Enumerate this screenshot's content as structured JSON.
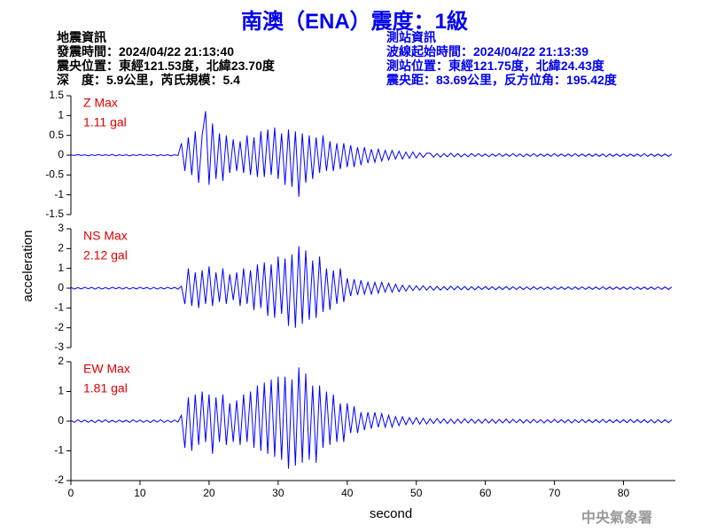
{
  "header": {
    "title": "南澳（ENA）震度：1級",
    "event_info": [
      "地震資訊",
      "發震時間：2024/04/22 21:13:40",
      "震央位置：東經121.53度，北緯23.70度",
      "深　度：5.9公里，芮氏規模：5.4"
    ],
    "station_info": [
      "測站資訊",
      "波線起始時間：2024/04/22 21:13:39",
      "測站位置：東經121.75度，北緯24.43度",
      "震央距：83.69公里，反方位角：195.42度"
    ],
    "footer": "中央氣象署"
  },
  "chart_data": [
    {
      "type": "line",
      "color": "#0000ff",
      "annotations": [
        "Z Max",
        "1.11 gal"
      ],
      "xlim": [
        0,
        87.5
      ],
      "ylim": [
        -1.5,
        1.5
      ],
      "yticks": [
        -1.5,
        -1,
        -0.5,
        0,
        0.5,
        1,
        1.5
      ],
      "x": [
        0,
        0.5,
        1,
        1.5,
        2,
        2.5,
        3,
        3.5,
        4,
        4.5,
        5,
        5.5,
        6,
        6.5,
        7,
        7.5,
        8,
        8.5,
        9,
        9.5,
        10,
        10.5,
        11,
        11.5,
        12,
        12.5,
        13,
        13.5,
        14,
        14.5,
        15,
        15.5,
        16,
        16.5,
        17,
        17.5,
        18,
        18.5,
        19,
        19.5,
        20,
        20.5,
        21,
        21.5,
        22,
        22.5,
        23,
        23.5,
        24,
        24.5,
        25,
        25.5,
        26,
        26.5,
        27,
        27.5,
        28,
        28.5,
        29,
        29.5,
        30,
        30.5,
        31,
        31.5,
        32,
        32.5,
        33,
        33.5,
        34,
        34.5,
        35,
        35.5,
        36,
        36.5,
        37,
        37.5,
        38,
        38.5,
        39,
        39.5,
        40,
        40.5,
        41,
        41.5,
        42,
        42.5,
        43,
        43.5,
        44,
        44.5,
        45,
        45.5,
        46,
        46.5,
        47,
        47.5,
        48,
        48.5,
        49,
        49.5,
        50,
        50.5,
        51,
        51.5,
        52,
        52.5,
        53,
        53.5,
        54,
        54.5,
        55,
        55.5,
        56,
        56.5,
        57,
        57.5,
        58,
        58.5,
        59,
        59.5,
        60,
        60.5,
        61,
        61.5,
        62,
        62.5,
        63,
        63.5,
        64,
        64.5,
        65,
        65.5,
        66,
        66.5,
        67,
        67.5,
        68,
        68.5,
        69,
        69.5,
        70,
        70.5,
        71,
        71.5,
        72,
        72.5,
        73,
        73.5,
        74,
        74.5,
        75,
        75.5,
        76,
        76.5,
        77,
        77.5,
        78,
        78.5,
        79,
        79.5,
        80,
        80.5,
        81,
        81.5,
        82,
        82.5,
        83,
        83.5,
        84,
        84.5,
        85,
        85.5,
        86,
        86.5,
        87
      ],
      "values": [
        0.01,
        -0.01,
        0.02,
        -0.01,
        0.01,
        -0.02,
        0.01,
        -0.01,
        0.02,
        -0.01,
        0.01,
        -0.01,
        0.02,
        -0.02,
        0.01,
        -0.01,
        0.01,
        -0.02,
        0.01,
        -0.01,
        0.02,
        -0.01,
        0.01,
        -0.01,
        0.02,
        -0.02,
        0.01,
        -0.01,
        0.01,
        -0.02,
        0.01,
        -0.01,
        0.3,
        -0.4,
        0.45,
        -0.5,
        0.6,
        -0.7,
        0.5,
        1.11,
        -0.75,
        0.8,
        -0.6,
        0.55,
        -0.65,
        0.5,
        -0.45,
        0.4,
        -0.4,
        0.35,
        -0.45,
        0.5,
        -0.5,
        0.45,
        -0.55,
        0.6,
        -0.55,
        0.65,
        -0.5,
        0.7,
        -0.6,
        0.55,
        -0.75,
        0.65,
        -0.8,
        0.6,
        -1.05,
        0.55,
        -0.7,
        0.5,
        -0.6,
        0.45,
        -0.45,
        0.5,
        -0.4,
        0.35,
        -0.4,
        0.3,
        -0.35,
        0.3,
        -0.3,
        0.25,
        -0.3,
        0.2,
        -0.25,
        0.2,
        -0.2,
        0.15,
        -0.18,
        0.15,
        -0.15,
        0.12,
        -0.12,
        0.12,
        -0.1,
        0.1,
        -0.1,
        0.08,
        -0.08,
        0.08,
        -0.07,
        0.06,
        -0.06,
        0.05,
        0.05,
        -0.05,
        0.04,
        -0.05,
        0.04,
        -0.04,
        0.05,
        -0.04,
        0.04,
        -0.04,
        0.03,
        -0.04,
        0.04,
        -0.03,
        0.04,
        -0.03,
        0.03,
        -0.04,
        0.03,
        -0.03,
        0.04,
        -0.03,
        0.03,
        -0.03,
        0.04,
        -0.03,
        0.03,
        -0.04,
        0.03,
        -0.03,
        0.04,
        -0.03,
        0.03,
        -0.03,
        0.03,
        -0.03,
        0.04,
        -0.03,
        0.03,
        -0.03,
        0.03,
        -0.03,
        0.04,
        -0.03,
        0.03,
        -0.03,
        0.03,
        -0.03,
        0.03,
        -0.03,
        0.03,
        -0.04,
        0.03,
        -0.03,
        0.03,
        -0.03,
        0.03,
        -0.03,
        0.03,
        -0.03,
        0.03,
        -0.03,
        0.04,
        -0.03,
        0.03,
        -0.03,
        0.03,
        -0.03,
        0.03,
        -0.03,
        0.03
      ]
    },
    {
      "type": "line",
      "color": "#0000ff",
      "annotations": [
        "NS Max",
        "2.12 gal"
      ],
      "ylabel": "acceleration",
      "xlim": [
        0,
        87.5
      ],
      "ylim": [
        -3,
        3
      ],
      "yticks": [
        -3,
        -2,
        -1,
        0,
        1,
        2,
        3
      ],
      "x": [
        0,
        0.5,
        1,
        1.5,
        2,
        2.5,
        3,
        3.5,
        4,
        4.5,
        5,
        5.5,
        6,
        6.5,
        7,
        7.5,
        8,
        8.5,
        9,
        9.5,
        10,
        10.5,
        11,
        11.5,
        12,
        12.5,
        13,
        13.5,
        14,
        14.5,
        15,
        15.5,
        16,
        16.5,
        17,
        17.5,
        18,
        18.5,
        19,
        19.5,
        20,
        20.5,
        21,
        21.5,
        22,
        22.5,
        23,
        23.5,
        24,
        24.5,
        25,
        25.5,
        26,
        26.5,
        27,
        27.5,
        28,
        28.5,
        29,
        29.5,
        30,
        30.5,
        31,
        31.5,
        32,
        32.5,
        33,
        33.5,
        34,
        34.5,
        35,
        35.5,
        36,
        36.5,
        37,
        37.5,
        38,
        38.5,
        39,
        39.5,
        40,
        40.5,
        41,
        41.5,
        42,
        42.5,
        43,
        43.5,
        44,
        44.5,
        45,
        45.5,
        46,
        46.5,
        47,
        47.5,
        48,
        48.5,
        49,
        49.5,
        50,
        50.5,
        51,
        51.5,
        52,
        52.5,
        53,
        53.5,
        54,
        54.5,
        55,
        55.5,
        56,
        56.5,
        57,
        57.5,
        58,
        58.5,
        59,
        59.5,
        60,
        60.5,
        61,
        61.5,
        62,
        62.5,
        63,
        63.5,
        64,
        64.5,
        65,
        65.5,
        66,
        66.5,
        67,
        67.5,
        68,
        68.5,
        69,
        69.5,
        70,
        70.5,
        71,
        71.5,
        72,
        72.5,
        73,
        73.5,
        74,
        74.5,
        75,
        75.5,
        76,
        76.5,
        77,
        77.5,
        78,
        78.5,
        79,
        79.5,
        80,
        80.5,
        81,
        81.5,
        82,
        82.5,
        83,
        83.5,
        84,
        84.5,
        85,
        85.5,
        86,
        86.5,
        87
      ],
      "values": [
        0.04,
        -0.05,
        0.03,
        -0.04,
        0.05,
        -0.03,
        0.04,
        -0.05,
        0.04,
        -0.05,
        0.03,
        -0.04,
        0.05,
        -0.03,
        0.04,
        -0.05,
        0.04,
        -0.05,
        0.03,
        -0.04,
        0.05,
        -0.03,
        0.04,
        -0.05,
        0.04,
        -0.05,
        0.03,
        -0.04,
        0.05,
        -0.03,
        0.04,
        -0.05,
        0.1,
        -0.8,
        1.0,
        -0.9,
        0.8,
        -1.0,
        0.9,
        -0.8,
        1.1,
        -0.9,
        0.8,
        -0.7,
        1.0,
        -0.8,
        0.7,
        -0.6,
        0.8,
        -0.9,
        1.0,
        -0.8,
        0.9,
        -1.1,
        1.2,
        -1.0,
        1.3,
        -1.4,
        1.2,
        -1.5,
        1.6,
        -1.3,
        1.5,
        -1.9,
        1.7,
        -2.0,
        2.12,
        -1.8,
        1.9,
        -1.6,
        1.4,
        -1.5,
        1.6,
        -1.2,
        1.0,
        -1.1,
        0.9,
        -0.8,
        1.0,
        -0.7,
        0.5,
        -0.4,
        0.45,
        -0.35,
        0.4,
        -0.3,
        0.3,
        -0.3,
        0.3,
        -0.25,
        0.3,
        -0.2,
        0.25,
        -0.2,
        0.2,
        -0.18,
        0.15,
        -0.15,
        0.14,
        -0.12,
        0.12,
        -0.1,
        0.12,
        -0.1,
        0.1,
        -0.1,
        0.09,
        -0.1,
        0.08,
        -0.09,
        0.1,
        -0.08,
        0.09,
        -0.08,
        0.08,
        -0.09,
        0.07,
        -0.08,
        0.08,
        -0.07,
        0.08,
        -0.07,
        0.07,
        -0.08,
        0.07,
        -0.07,
        0.08,
        -0.07,
        0.07,
        -0.06,
        0.07,
        -0.07,
        0.06,
        -0.07,
        0.07,
        -0.06,
        0.06,
        -0.07,
        0.06,
        -0.06,
        0.07,
        -0.06,
        0.06,
        -0.06,
        0.06,
        -0.07,
        0.06,
        -0.06,
        0.07,
        -0.06,
        0.06,
        -0.06,
        0.06,
        -0.06,
        0.07,
        -0.06,
        0.06,
        -0.06,
        0.06,
        -0.06,
        0.06,
        -0.06,
        0.06,
        -0.07,
        0.06,
        -0.06,
        0.06,
        -0.06,
        0.06,
        -0.06,
        0.07,
        -0.06,
        0.06,
        -0.06,
        0.06
      ]
    },
    {
      "type": "line",
      "color": "#0000ff",
      "annotations": [
        "EW Max",
        "1.81 gal"
      ],
      "xlabel": "second",
      "xlim": [
        0,
        87.5
      ],
      "ylim": [
        -2,
        2
      ],
      "yticks": [
        -2,
        -1,
        0,
        1,
        2
      ],
      "xticks": [
        0,
        10,
        20,
        30,
        40,
        50,
        60,
        70,
        80
      ],
      "x": [
        0,
        0.5,
        1,
        1.5,
        2,
        2.5,
        3,
        3.5,
        4,
        4.5,
        5,
        5.5,
        6,
        6.5,
        7,
        7.5,
        8,
        8.5,
        9,
        9.5,
        10,
        10.5,
        11,
        11.5,
        12,
        12.5,
        13,
        13.5,
        14,
        14.5,
        15,
        15.5,
        16,
        16.5,
        17,
        17.5,
        18,
        18.5,
        19,
        19.5,
        20,
        20.5,
        21,
        21.5,
        22,
        22.5,
        23,
        23.5,
        24,
        24.5,
        25,
        25.5,
        26,
        26.5,
        27,
        27.5,
        28,
        28.5,
        29,
        29.5,
        30,
        30.5,
        31,
        31.5,
        32,
        32.5,
        33,
        33.5,
        34,
        34.5,
        35,
        35.5,
        36,
        36.5,
        37,
        37.5,
        38,
        38.5,
        39,
        39.5,
        40,
        40.5,
        41,
        41.5,
        42,
        42.5,
        43,
        43.5,
        44,
        44.5,
        45,
        45.5,
        46,
        46.5,
        47,
        47.5,
        48,
        48.5,
        49,
        49.5,
        50,
        50.5,
        51,
        51.5,
        52,
        52.5,
        53,
        53.5,
        54,
        54.5,
        55,
        55.5,
        56,
        56.5,
        57,
        57.5,
        58,
        58.5,
        59,
        59.5,
        60,
        60.5,
        61,
        61.5,
        62,
        62.5,
        63,
        63.5,
        64,
        64.5,
        65,
        65.5,
        66,
        66.5,
        67,
        67.5,
        68,
        68.5,
        69,
        69.5,
        70,
        70.5,
        71,
        71.5,
        72,
        72.5,
        73,
        73.5,
        74,
        74.5,
        75,
        75.5,
        76,
        76.5,
        77,
        77.5,
        78,
        78.5,
        79,
        79.5,
        80,
        80.5,
        81,
        81.5,
        82,
        82.5,
        83,
        83.5,
        84,
        84.5,
        85,
        85.5,
        86,
        86.5,
        87
      ],
      "values": [
        0.03,
        -0.04,
        0.05,
        -0.03,
        0.04,
        -0.04,
        0.03,
        -0.05,
        0.04,
        -0.03,
        0.05,
        -0.04,
        0.03,
        -0.04,
        0.04,
        -0.03,
        0.03,
        -0.04,
        0.05,
        -0.03,
        0.04,
        -0.04,
        0.03,
        -0.05,
        0.04,
        -0.03,
        0.05,
        -0.04,
        0.03,
        -0.04,
        0.04,
        -0.03,
        0.2,
        -0.9,
        0.8,
        -1.0,
        0.9,
        -0.8,
        1.0,
        -0.7,
        0.9,
        -1.1,
        0.8,
        -0.7,
        0.9,
        -0.8,
        0.6,
        -0.7,
        0.7,
        -0.8,
        0.9,
        -0.7,
        1.0,
        -0.9,
        1.2,
        -1.0,
        1.3,
        -1.1,
        1.4,
        -1.2,
        1.5,
        -1.3,
        1.5,
        -1.6,
        1.4,
        -1.5,
        1.81,
        -1.4,
        1.6,
        -1.3,
        1.2,
        -1.4,
        1.2,
        -0.9,
        1.0,
        -0.8,
        0.9,
        -0.7,
        0.6,
        -0.7,
        0.6,
        -0.4,
        0.5,
        -0.4,
        0.3,
        -0.3,
        0.3,
        -0.25,
        0.3,
        -0.2,
        0.25,
        -0.2,
        0.2,
        -0.2,
        0.15,
        -0.15,
        0.15,
        -0.12,
        0.12,
        -0.1,
        0.12,
        -0.1,
        0.1,
        -0.1,
        0.08,
        -0.08,
        0.09,
        -0.07,
        0.08,
        -0.08,
        0.07,
        -0.08,
        0.07,
        -0.07,
        0.08,
        -0.06,
        0.07,
        -0.07,
        0.06,
        -0.07,
        0.07,
        -0.06,
        0.06,
        -0.07,
        0.06,
        -0.06,
        0.07,
        -0.06,
        0.06,
        -0.05,
        0.06,
        -0.06,
        0.05,
        -0.06,
        0.06,
        -0.05,
        0.05,
        -0.06,
        0.05,
        -0.05,
        0.06,
        -0.05,
        0.05,
        -0.05,
        0.05,
        -0.06,
        0.05,
        -0.05,
        0.06,
        -0.05,
        0.05,
        -0.05,
        0.05,
        -0.05,
        0.06,
        -0.05,
        0.05,
        -0.05,
        0.05,
        -0.05,
        0.05,
        -0.05,
        0.06,
        -0.05,
        0.05,
        -0.05,
        0.05,
        -0.05,
        0.05,
        -0.06,
        0.05,
        -0.05,
        0.05,
        -0.05,
        0.05
      ]
    }
  ]
}
